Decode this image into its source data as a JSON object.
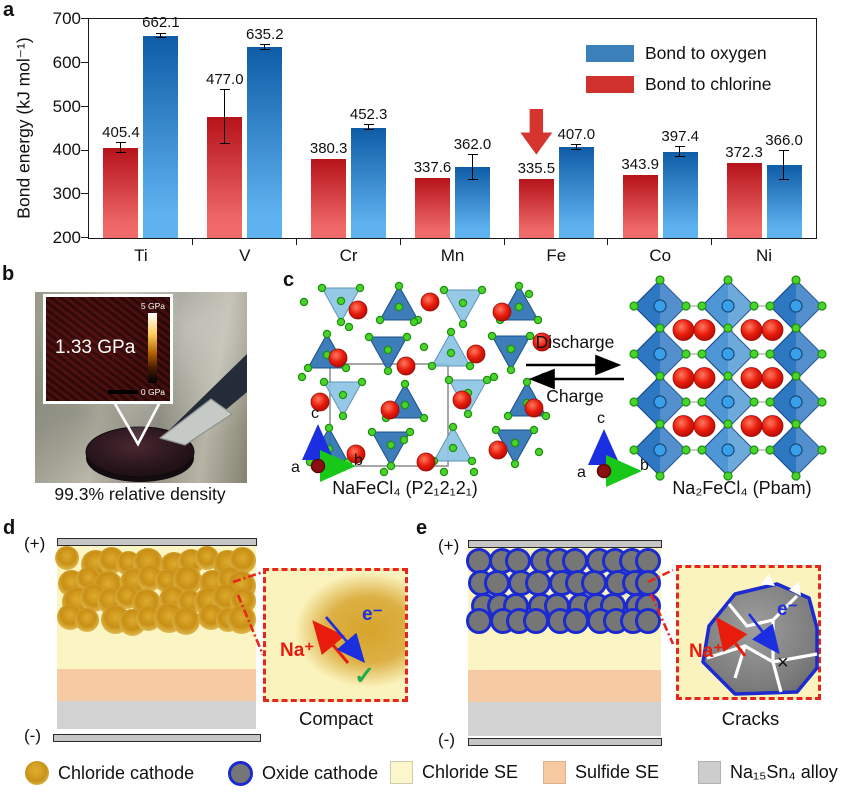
{
  "panels": {
    "a": {
      "label": "a"
    },
    "b": {
      "label": "b",
      "inset_value": "1.33 GPa",
      "scale_top": "5 GPa",
      "scale_bottom": "0 GPa",
      "caption": "99.3% relative density"
    },
    "c": {
      "label": "c",
      "left_caption": "NaFeCl₄ (P2₁2₁2₁)",
      "right_caption": "Na₂FeCl₄ (Pbam)",
      "forward_label": "Discharge",
      "backward_label": "Charge",
      "axis_up": "c",
      "axis_right": "b",
      "axis_origin": "a"
    },
    "d": {
      "label": "d",
      "positive": "(+)",
      "negative": "(-)",
      "ion_label": "Na⁺",
      "electron_label": "e⁻",
      "status_mark": "✓",
      "caption": "Compact"
    },
    "e": {
      "label": "e",
      "positive": "(+)",
      "negative": "(-)",
      "ion_label": "Na⁺",
      "electron_label": "e⁻",
      "status_mark": "×",
      "caption": "Cracks"
    }
  },
  "chart_data": {
    "type": "bar",
    "title": "",
    "xlabel": "",
    "ylabel": "Bond energy (kJ mol⁻¹)",
    "ylim": [
      200,
      700
    ],
    "yticks": [
      200,
      300,
      400,
      500,
      600,
      700
    ],
    "grid": false,
    "legend_position": "top-right",
    "categories": [
      "Ti",
      "V",
      "Cr",
      "Mn",
      "Fe",
      "Co",
      "Ni"
    ],
    "series": [
      {
        "name": "Bond to chlorine",
        "slot": 0,
        "color_top": "#b5131a",
        "color_bottom": "#f06a6a",
        "legend_color": "#d0312d",
        "values": [
          405.4,
          477.0,
          380.3,
          337.6,
          335.5,
          343.9,
          372.3
        ],
        "errors": [
          12,
          62,
          0,
          0,
          0,
          0,
          0
        ]
      },
      {
        "name": "Bond to oxygen",
        "slot": 1,
        "color_top": "#0f5ca6",
        "color_bottom": "#5fb2f0",
        "legend_color": "#3b80b9",
        "values": [
          662.1,
          635.2,
          452.3,
          362.0,
          407.0,
          397.4,
          366.0
        ],
        "errors": [
          5,
          5,
          6,
          28,
          5,
          11,
          33
        ]
      }
    ],
    "legend": [
      {
        "label": "Bond to oxygen",
        "color": "#3b80b9"
      },
      {
        "label": "Bond to chlorine",
        "color": "#d0312d"
      }
    ],
    "annotation_arrow": {
      "category": "Fe",
      "series": "Bond to chlorine",
      "color": "#d6352f"
    }
  },
  "legend_row": {
    "items": [
      {
        "label": "Chloride cathode",
        "swatch": "chloride-cathode"
      },
      {
        "label": "Oxide cathode",
        "swatch": "oxide-cathode"
      },
      {
        "label": "Chloride SE",
        "swatch": "chloride-se"
      },
      {
        "label": "Sulfide SE",
        "swatch": "sulfide-se"
      },
      {
        "label": "Na₁₅Sn₄ alloy",
        "swatch": "na15sn4-alloy"
      }
    ]
  }
}
